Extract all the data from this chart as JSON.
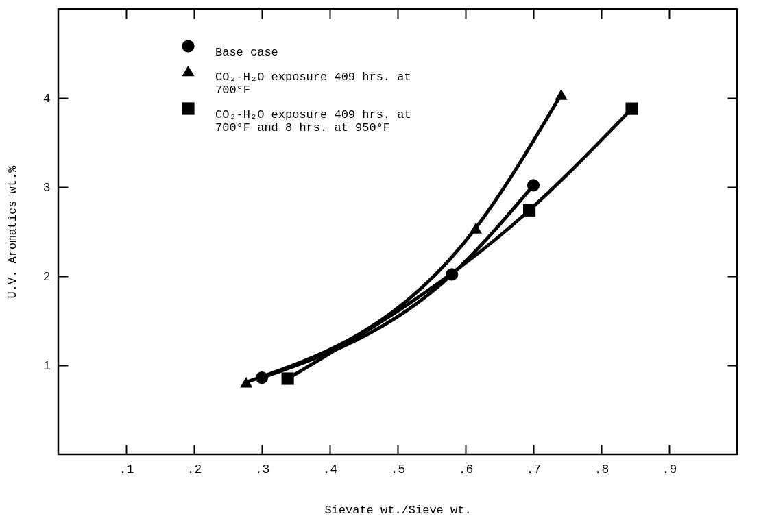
{
  "chart_data": {
    "type": "line",
    "xlabel": "Sievate wt./Sieve wt.",
    "ylabel": "U.V. Aromatics wt.%",
    "xlim": [
      0,
      1
    ],
    "ylim": [
      0,
      5
    ],
    "xticks": [
      {
        "value": 0.1,
        "label": ".1"
      },
      {
        "value": 0.2,
        "label": ".2"
      },
      {
        "value": 0.3,
        "label": ".3"
      },
      {
        "value": 0.4,
        "label": ".4"
      },
      {
        "value": 0.5,
        "label": ".5"
      },
      {
        "value": 0.6,
        "label": ".6"
      },
      {
        "value": 0.7,
        "label": ".7"
      },
      {
        "value": 0.8,
        "label": ".8"
      },
      {
        "value": 0.9,
        "label": ".9"
      }
    ],
    "yticks": [
      1,
      2,
      3,
      4
    ],
    "grid": false,
    "legend": "top left",
    "series": [
      {
        "name": "Base case",
        "color": "#000000",
        "marker": "circle",
        "x": [
          0.3,
          0.58,
          0.7
        ],
        "values": [
          0.86,
          2.02,
          3.02
        ]
      },
      {
        "name": "CO₂-H₂O exposure 409 hrs. at 700°F",
        "color": "#000000",
        "marker": "triangle",
        "x": [
          0.277,
          0.615,
          0.741
        ],
        "values": [
          0.81,
          2.54,
          4.04
        ]
      },
      {
        "name": "CO₂-H₂O exposure 409 hrs. at 700°F and 8 hrs. at 950°F",
        "color": "#000000",
        "marker": "square",
        "x": [
          0.338,
          0.694,
          0.845
        ],
        "values": [
          0.85,
          2.74,
          3.88
        ]
      }
    ]
  }
}
